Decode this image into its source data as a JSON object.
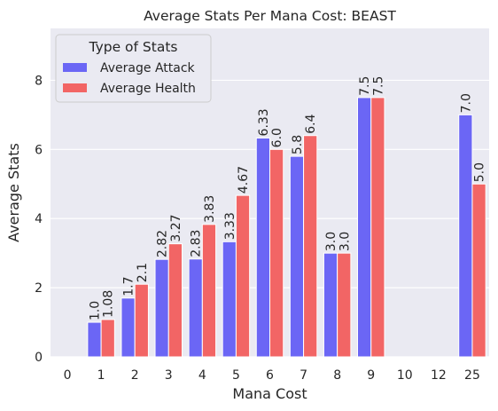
{
  "chart_data": {
    "type": "bar",
    "title": "Average Stats Per Mana Cost: BEAST",
    "xlabel": "Mana Cost",
    "ylabel": "Average Stats",
    "categories": [
      "0",
      "1",
      "2",
      "3",
      "4",
      "5",
      "6",
      "7",
      "8",
      "9",
      "10",
      "12",
      "25"
    ],
    "yticks": [
      "0",
      "2",
      "4",
      "6",
      "8"
    ],
    "ylim": [
      0,
      9.5
    ],
    "grid": true,
    "legend": {
      "title": "Type of Stats",
      "placement": "top-left"
    },
    "series": [
      {
        "name": "Average Attack",
        "color": "#6b66f5",
        "values": [
          null,
          1.0,
          1.7,
          2.82,
          2.83,
          3.33,
          6.33,
          5.8,
          3.0,
          7.5,
          null,
          null,
          7.0
        ],
        "labels": [
          "",
          "1.0",
          "1.7",
          "2.82",
          "2.83",
          "3.33",
          "6.33",
          "5.8",
          "3.0",
          "7.5",
          "",
          "",
          "7.0"
        ]
      },
      {
        "name": "Average Health",
        "color": "#f26565",
        "values": [
          null,
          1.08,
          2.1,
          3.27,
          3.83,
          4.67,
          6.0,
          6.4,
          3.0,
          7.5,
          null,
          null,
          5.0
        ],
        "labels": [
          "",
          "1.08",
          "2.1",
          "3.27",
          "3.83",
          "4.67",
          "6.0",
          "6.4",
          "3.0",
          "7.5",
          "",
          "",
          "5.0"
        ]
      }
    ]
  }
}
